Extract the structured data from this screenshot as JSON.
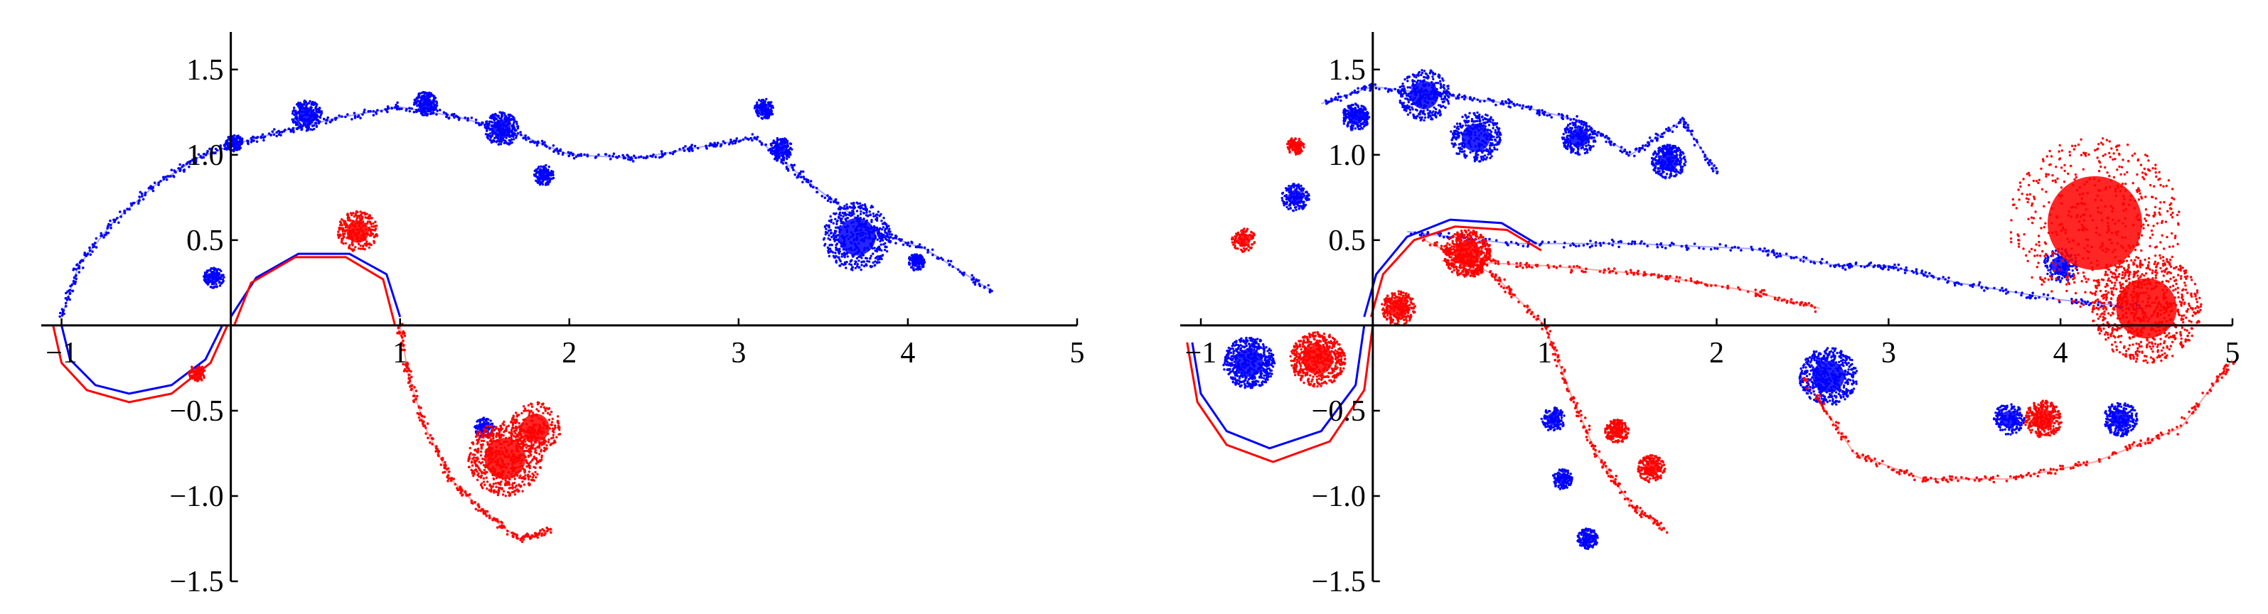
{
  "chart_data": [
    {
      "type": "scatter",
      "title": "",
      "xlabel": "",
      "ylabel": "",
      "xlim": [
        -1.12,
        5.0
      ],
      "ylim": [
        -1.5,
        1.72
      ],
      "x_ticks": [
        {
          "value": -1,
          "label": "−1"
        },
        {
          "value": 1,
          "label": "1"
        },
        {
          "value": 2,
          "label": "2"
        },
        {
          "value": 3,
          "label": "3"
        },
        {
          "value": 4,
          "label": "4"
        },
        {
          "value": 5,
          "label": "5"
        }
      ],
      "y_ticks": [
        {
          "value": 1.5,
          "label": "1.5"
        },
        {
          "value": 1.0,
          "label": "1.0"
        },
        {
          "value": 0.5,
          "label": "0.5"
        },
        {
          "value": -0.5,
          "label": "−0.5"
        },
        {
          "value": -1.0,
          "label": "−1.0"
        },
        {
          "value": -1.5,
          "label": "−1.5"
        }
      ],
      "grid": false,
      "legend": "none",
      "series": [
        {
          "color": "#0000ff",
          "sheets": [
            [
              [
                -1.0,
                0.05
              ],
              [
                -0.9,
                0.35
              ],
              [
                -0.7,
                0.6
              ],
              [
                -0.45,
                0.82
              ],
              [
                -0.2,
                0.98
              ],
              [
                0.05,
                1.07
              ],
              [
                0.35,
                1.15
              ],
              [
                0.65,
                1.22
              ],
              [
                1.0,
                1.28
              ],
              [
                1.35,
                1.22
              ],
              [
                1.7,
                1.12
              ],
              [
                2.0,
                1.0
              ],
              [
                2.4,
                0.98
              ],
              [
                2.8,
                1.05
              ],
              [
                3.1,
                1.1
              ],
              [
                3.4,
                0.85
              ],
              [
                3.8,
                0.55
              ],
              [
                4.1,
                0.45
              ],
              [
                4.5,
                0.2
              ]
            ]
          ],
          "arcs": [
            [
              [
                -1.0,
                0.0
              ],
              [
                -0.95,
                -0.2
              ],
              [
                -0.8,
                -0.35
              ],
              [
                -0.6,
                -0.4
              ],
              [
                -0.35,
                -0.35
              ],
              [
                -0.15,
                -0.2
              ],
              [
                -0.05,
                0.0
              ]
            ],
            [
              [
                0.0,
                0.05
              ],
              [
                0.15,
                0.28
              ],
              [
                0.4,
                0.42
              ],
              [
                0.7,
                0.42
              ],
              [
                0.92,
                0.3
              ],
              [
                1.0,
                0.05
              ]
            ]
          ],
          "clusters": [
            {
              "x": 0.02,
              "y": 1.07,
              "r": 0.05,
              "n": 120
            },
            {
              "x": 0.45,
              "y": 1.23,
              "r": 0.09,
              "n": 220
            },
            {
              "x": 1.15,
              "y": 1.3,
              "r": 0.07,
              "n": 180
            },
            {
              "x": 1.6,
              "y": 1.15,
              "r": 0.1,
              "n": 240
            },
            {
              "x": 1.85,
              "y": 0.88,
              "r": 0.06,
              "n": 150
            },
            {
              "x": 3.15,
              "y": 1.27,
              "r": 0.06,
              "n": 120
            },
            {
              "x": 3.25,
              "y": 1.03,
              "r": 0.07,
              "n": 140
            },
            {
              "x": 3.7,
              "y": 0.52,
              "r": 0.2,
              "n": 500
            },
            {
              "x": 4.05,
              "y": 0.37,
              "r": 0.05,
              "n": 120
            },
            {
              "x": -0.1,
              "y": 0.28,
              "r": 0.06,
              "n": 120
            },
            {
              "x": 1.5,
              "y": -0.6,
              "r": 0.06,
              "n": 120
            }
          ]
        },
        {
          "color": "#ff0000",
          "sheets": [
            [
              [
                1.0,
                0.0
              ],
              [
                1.05,
                -0.3
              ],
              [
                1.15,
                -0.6
              ],
              [
                1.3,
                -0.9
              ],
              [
                1.5,
                -1.1
              ],
              [
                1.7,
                -1.25
              ],
              [
                1.9,
                -1.2
              ]
            ]
          ],
          "arcs": [
            [
              [
                -1.05,
                0.0
              ],
              [
                -1.0,
                -0.22
              ],
              [
                -0.85,
                -0.38
              ],
              [
                -0.6,
                -0.45
              ],
              [
                -0.35,
                -0.4
              ],
              [
                -0.12,
                -0.22
              ],
              [
                -0.02,
                0.0
              ]
            ],
            [
              [
                0.02,
                0.0
              ],
              [
                0.12,
                0.25
              ],
              [
                0.38,
                0.4
              ],
              [
                0.68,
                0.4
              ],
              [
                0.9,
                0.27
              ],
              [
                0.97,
                0.0
              ]
            ]
          ],
          "clusters": [
            {
              "x": 0.75,
              "y": 0.55,
              "r": 0.12,
              "n": 260
            },
            {
              "x": 1.62,
              "y": -0.78,
              "r": 0.22,
              "n": 650
            },
            {
              "x": 1.8,
              "y": -0.6,
              "r": 0.15,
              "n": 240
            },
            {
              "x": -0.2,
              "y": -0.28,
              "r": 0.05,
              "n": 90
            }
          ]
        }
      ]
    },
    {
      "type": "scatter",
      "title": "",
      "xlabel": "",
      "ylabel": "",
      "xlim": [
        -1.12,
        5.0
      ],
      "ylim": [
        -1.5,
        1.72
      ],
      "x_ticks": [
        {
          "value": -1,
          "label": "−1"
        },
        {
          "value": 1,
          "label": "1"
        },
        {
          "value": 2,
          "label": "2"
        },
        {
          "value": 3,
          "label": "3"
        },
        {
          "value": 4,
          "label": "4"
        },
        {
          "value": 5,
          "label": "5"
        }
      ],
      "y_ticks": [
        {
          "value": 1.5,
          "label": "1.5"
        },
        {
          "value": 1.0,
          "label": "1.0"
        },
        {
          "value": 0.5,
          "label": "0.5"
        },
        {
          "value": -0.5,
          "label": "−0.5"
        },
        {
          "value": -1.0,
          "label": "−1.0"
        },
        {
          "value": -1.5,
          "label": "−1.5"
        }
      ],
      "grid": false,
      "legend": "none",
      "series": [
        {
          "color": "#0000ff",
          "sheets": [
            [
              [
                -0.3,
                1.3
              ],
              [
                0.0,
                1.4
              ],
              [
                0.4,
                1.35
              ],
              [
                0.8,
                1.3
              ],
              [
                1.2,
                1.2
              ],
              [
                1.5,
                1.0
              ],
              [
                1.8,
                1.2
              ],
              [
                2.0,
                0.9
              ]
            ],
            [
              [
                0.2,
                0.55
              ],
              [
                0.8,
                0.48
              ],
              [
                1.5,
                0.48
              ],
              [
                2.2,
                0.45
              ],
              [
                2.7,
                0.35
              ],
              [
                3.0,
                0.35
              ],
              [
                3.4,
                0.25
              ],
              [
                4.0,
                0.15
              ],
              [
                4.5,
                0.1
              ]
            ]
          ],
          "arcs": [
            [
              [
                -1.05,
                -0.1
              ],
              [
                -1.0,
                -0.4
              ],
              [
                -0.85,
                -0.62
              ],
              [
                -0.6,
                -0.72
              ],
              [
                -0.3,
                -0.62
              ],
              [
                -0.1,
                -0.35
              ],
              [
                -0.05,
                0.0
              ]
            ],
            [
              [
                -0.05,
                0.05
              ],
              [
                0.02,
                0.3
              ],
              [
                0.2,
                0.52
              ],
              [
                0.45,
                0.62
              ],
              [
                0.75,
                0.6
              ],
              [
                0.95,
                0.48
              ]
            ]
          ],
          "clusters": [
            {
              "x": -0.72,
              "y": -0.22,
              "r": 0.15,
              "n": 500
            },
            {
              "x": -0.45,
              "y": 0.75,
              "r": 0.08,
              "n": 160
            },
            {
              "x": -0.1,
              "y": 1.22,
              "r": 0.08,
              "n": 200
            },
            {
              "x": 0.3,
              "y": 1.35,
              "r": 0.15,
              "n": 320
            },
            {
              "x": 0.6,
              "y": 1.1,
              "r": 0.15,
              "n": 320
            },
            {
              "x": 1.2,
              "y": 1.1,
              "r": 0.1,
              "n": 220
            },
            {
              "x": 1.72,
              "y": 0.96,
              "r": 0.1,
              "n": 260
            },
            {
              "x": 2.65,
              "y": -0.3,
              "r": 0.17,
              "n": 520
            },
            {
              "x": 3.7,
              "y": -0.55,
              "r": 0.09,
              "n": 170
            },
            {
              "x": 4.35,
              "y": -0.55,
              "r": 0.1,
              "n": 220
            },
            {
              "x": 4.0,
              "y": 0.35,
              "r": 0.1,
              "n": 130
            },
            {
              "x": 1.05,
              "y": -0.55,
              "r": 0.07,
              "n": 120
            },
            {
              "x": 1.25,
              "y": -1.25,
              "r": 0.06,
              "n": 140
            },
            {
              "x": 1.1,
              "y": -0.9,
              "r": 0.06,
              "n": 120
            }
          ]
        },
        {
          "color": "#ff0000",
          "sheets": [
            [
              [
                0.3,
                0.5
              ],
              [
                0.7,
                0.3
              ],
              [
                1.0,
                0.0
              ],
              [
                1.15,
                -0.4
              ],
              [
                1.3,
                -0.75
              ],
              [
                1.5,
                -1.05
              ],
              [
                1.7,
                -1.2
              ]
            ],
            [
              [
                0.4,
                0.38
              ],
              [
                1.0,
                0.35
              ],
              [
                1.6,
                0.3
              ],
              [
                2.2,
                0.2
              ],
              [
                2.6,
                0.1
              ]
            ],
            [
              [
                2.5,
                -0.3
              ],
              [
                2.8,
                -0.75
              ],
              [
                3.2,
                -0.9
              ],
              [
                3.7,
                -0.9
              ],
              [
                4.2,
                -0.8
              ],
              [
                4.7,
                -0.6
              ],
              [
                5.0,
                -0.2
              ]
            ]
          ],
          "arcs": [
            [
              [
                -1.08,
                -0.1
              ],
              [
                -1.02,
                -0.45
              ],
              [
                -0.85,
                -0.7
              ],
              [
                -0.58,
                -0.8
              ],
              [
                -0.25,
                -0.68
              ],
              [
                -0.05,
                -0.38
              ],
              [
                0.0,
                0.0
              ]
            ],
            [
              [
                -0.01,
                0.05
              ],
              [
                0.06,
                0.3
              ],
              [
                0.24,
                0.5
              ],
              [
                0.48,
                0.58
              ],
              [
                0.78,
                0.56
              ],
              [
                0.98,
                0.44
              ]
            ]
          ],
          "clusters": [
            {
              "x": -0.32,
              "y": -0.2,
              "r": 0.16,
              "n": 520
            },
            {
              "x": 0.55,
              "y": 0.42,
              "r": 0.14,
              "n": 500
            },
            {
              "x": 0.15,
              "y": 0.1,
              "r": 0.1,
              "n": 240
            },
            {
              "x": 1.42,
              "y": -0.62,
              "r": 0.07,
              "n": 160
            },
            {
              "x": 1.62,
              "y": -0.84,
              "r": 0.08,
              "n": 170
            },
            {
              "x": 3.9,
              "y": -0.55,
              "r": 0.11,
              "n": 260
            },
            {
              "x": 4.5,
              "y": 0.1,
              "r": 0.32,
              "n": 700
            },
            {
              "x": 4.2,
              "y": 0.6,
              "r": 0.5,
              "n": 600
            },
            {
              "x": -0.45,
              "y": 1.05,
              "r": 0.05,
              "n": 90
            },
            {
              "x": -0.75,
              "y": 0.5,
              "r": 0.07,
              "n": 100
            }
          ]
        }
      ]
    }
  ]
}
